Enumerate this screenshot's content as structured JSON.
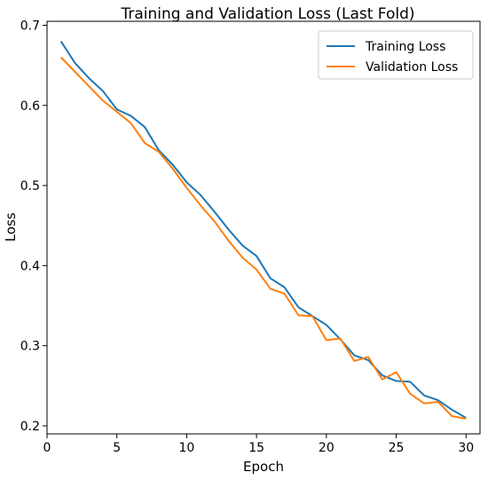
{
  "chart_data": {
    "type": "line",
    "title": "Training and Validation Loss (Last Fold)",
    "xlabel": "Epoch",
    "ylabel": "Loss",
    "xlim": [
      0,
      31
    ],
    "ylim": [
      0.19,
      0.705
    ],
    "xticks": [
      0,
      5,
      10,
      15,
      20,
      25,
      30
    ],
    "yticks": [
      0.2,
      0.3,
      0.4,
      0.5,
      0.6,
      0.7
    ],
    "legend_position": "top-right",
    "grid": false,
    "x": [
      1,
      2,
      3,
      4,
      5,
      6,
      7,
      8,
      9,
      10,
      11,
      12,
      13,
      14,
      15,
      16,
      17,
      18,
      19,
      20,
      21,
      22,
      23,
      24,
      25,
      26,
      27,
      28,
      29,
      30
    ],
    "series": [
      {
        "name": "Training Loss",
        "color": "#1f77b4",
        "values": [
          0.68,
          0.653,
          0.634,
          0.618,
          0.595,
          0.587,
          0.573,
          0.544,
          0.526,
          0.504,
          0.488,
          0.467,
          0.445,
          0.425,
          0.412,
          0.384,
          0.373,
          0.348,
          0.337,
          0.326,
          0.308,
          0.288,
          0.282,
          0.263,
          0.256,
          0.255,
          0.238,
          0.232,
          0.22,
          0.21
        ]
      },
      {
        "name": "Validation Loss",
        "color": "#ff7f0e",
        "values": [
          0.66,
          0.642,
          0.624,
          0.606,
          0.592,
          0.578,
          0.553,
          0.542,
          0.521,
          0.497,
          0.475,
          0.455,
          0.431,
          0.41,
          0.395,
          0.371,
          0.365,
          0.338,
          0.337,
          0.307,
          0.309,
          0.281,
          0.286,
          0.258,
          0.267,
          0.24,
          0.228,
          0.23,
          0.212,
          0.209
        ]
      }
    ]
  }
}
